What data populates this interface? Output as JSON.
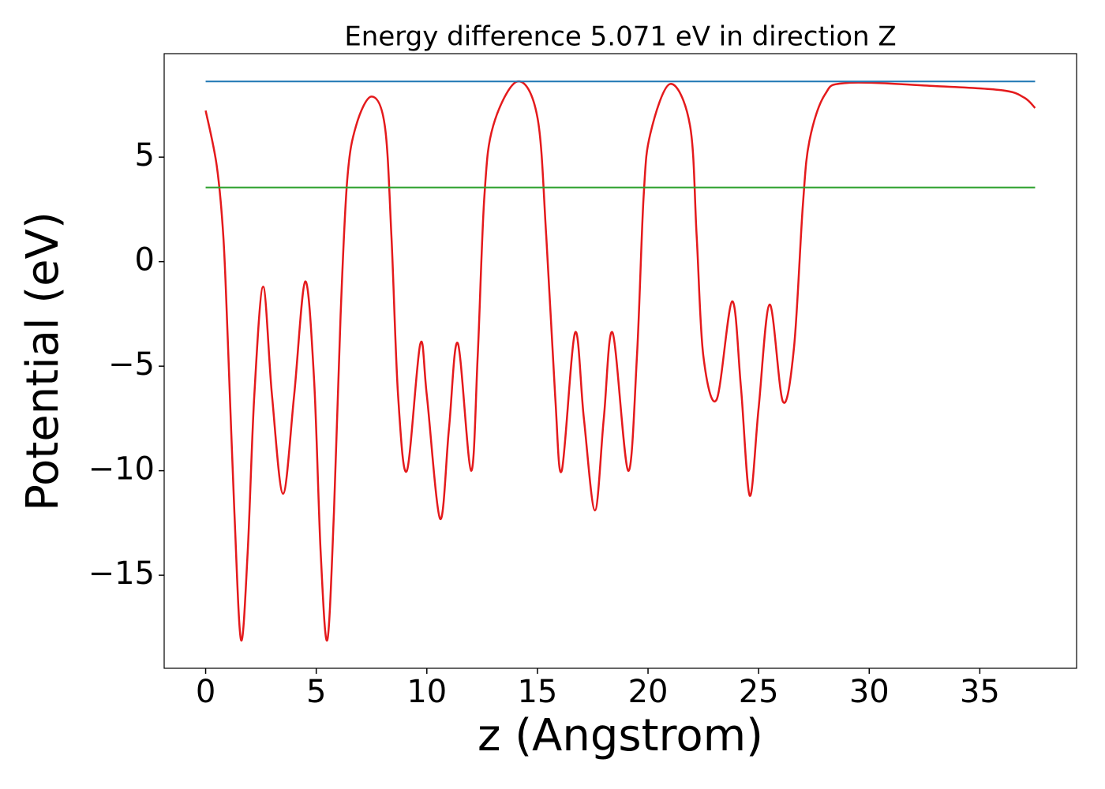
{
  "chart_data": {
    "type": "line",
    "title": "Energy difference 5.071 eV in direction Z",
    "x_label": "z (Angstrom)",
    "y_label": "Potential (eV)",
    "xlim": [
      -1.875,
      39.375
    ],
    "ylim": [
      -19.45,
      9.95
    ],
    "xticks": [
      0,
      5,
      10,
      15,
      20,
      25,
      30,
      35
    ],
    "yticks": [
      {
        "value": -15,
        "label": "−15"
      },
      {
        "value": -10,
        "label": "−10"
      },
      {
        "value": -5,
        "label": "−5"
      },
      0,
      5
    ],
    "series": [
      {
        "color": "#e41a1c",
        "x": [
          0,
          0.5,
          0.8,
          1.0,
          1.3,
          1.6,
          1.9,
          2.2,
          2.6,
          3.0,
          3.5,
          4.0,
          4.5,
          4.9,
          5.2,
          5.5,
          5.8,
          6.1,
          6.4,
          6.8,
          7.5,
          8.1,
          8.4,
          8.7,
          9.1,
          9.7,
          10.0,
          10.6,
          11.0,
          11.4,
          12.0,
          12.3,
          12.6,
          13.0,
          14.1,
          15.0,
          15.4,
          15.8,
          16.1,
          16.7,
          17.1,
          17.6,
          18.0,
          18.4,
          19.1,
          19.5,
          19.8,
          20.1,
          21.0,
          21.9,
          22.2,
          22.5,
          23.1,
          23.8,
          24.2,
          24.6,
          25.0,
          25.5,
          26.1,
          26.6,
          27.0,
          27.3,
          28.0,
          29.0,
          33.0,
          36.0,
          37.0,
          37.5
        ],
        "values": [
          7.23,
          4.6,
          1.2,
          -3.7,
          -12.0,
          -18.1,
          -13.9,
          -6.4,
          -1.2,
          -6.4,
          -11.1,
          -6.4,
          -0.95,
          -5.6,
          -13.9,
          -18.1,
          -12.0,
          -2.6,
          3.9,
          6.5,
          7.9,
          6.5,
          1.2,
          -6.4,
          -10.0,
          -3.95,
          -6.4,
          -12.3,
          -8.0,
          -3.9,
          -10.0,
          -4.5,
          3.1,
          6.5,
          8.62,
          6.9,
          1.2,
          -6.4,
          -10.0,
          -3.4,
          -7.5,
          -11.9,
          -7.5,
          -3.4,
          -10.0,
          -4.5,
          3.1,
          6.1,
          8.5,
          6.5,
          1.2,
          -4.5,
          -6.6,
          -1.9,
          -6.0,
          -11.2,
          -7.0,
          -2.05,
          -6.7,
          -4.1,
          2.7,
          5.8,
          8.0,
          8.55,
          8.4,
          8.2,
          7.85,
          7.35
        ]
      },
      {
        "color": "#1f77b4",
        "x": [
          0,
          37.5
        ],
        "values": [
          8.62,
          8.62
        ]
      },
      {
        "color": "#2ca02c",
        "x": [
          0,
          37.5
        ],
        "values": [
          3.55,
          3.55
        ]
      }
    ]
  }
}
